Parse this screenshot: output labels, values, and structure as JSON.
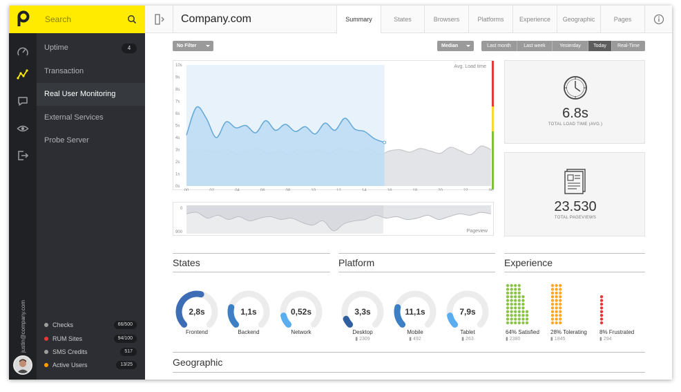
{
  "app": {
    "user_email": "justin@company.com"
  },
  "search": {
    "label": "Search"
  },
  "sidebar": {
    "items": [
      {
        "label": "Uptime",
        "badge": "4"
      },
      {
        "label": "Transaction"
      },
      {
        "label": "Real User Monitoring"
      },
      {
        "label": "External Services"
      },
      {
        "label": "Probe Server"
      }
    ],
    "stats": [
      {
        "label": "Checks",
        "value": "66/500",
        "color": "#9e9e9e"
      },
      {
        "label": "RUM Sites",
        "value": "94/100",
        "color": "#e53935"
      },
      {
        "label": "SMS Credits",
        "value": "517",
        "color": "#9e9e9e"
      },
      {
        "label": "Active Users",
        "value": "13/25",
        "color": "#ffa000"
      }
    ]
  },
  "header": {
    "title": "Company.com",
    "tabs": [
      "Summary",
      "States",
      "Browsers",
      "Platforms",
      "Experience",
      "Geographic",
      "Pages"
    ],
    "active_tab": "Summary"
  },
  "filters": {
    "filter_label": "No Filter",
    "metric_label": "Median",
    "ranges": [
      "Last month",
      "Last week",
      "Yesterday",
      "Today",
      "Real-Time"
    ],
    "active_range": "Today"
  },
  "chart_data": [
    {
      "type": "area",
      "title": "Avg. Load time",
      "x_ticks": [
        "00",
        "02",
        "04",
        "06",
        "08",
        "10",
        "12",
        "14",
        "16",
        "18",
        "20",
        "22",
        "00"
      ],
      "y_ticks": [
        "0s",
        "1s",
        "2s",
        "3s",
        "4s",
        "5s",
        "6s",
        "7s",
        "8s",
        "9s",
        "10s"
      ],
      "ylim": [
        0,
        10
      ],
      "series": [
        {
          "values": [
            4.2,
            6.5,
            5.6,
            4.0,
            5.3,
            4.8,
            5.0,
            4.4,
            5.4,
            4.6,
            5.1,
            4.5,
            4.9,
            4.3,
            5.2,
            4.6,
            5.6,
            4.7,
            4.5,
            3.9,
            3.6
          ],
          "x_end_hour": 15.6,
          "color": "#62a8d8"
        },
        {
          "values": [
            2.7,
            3.0,
            2.9,
            2.8,
            3.0,
            2.6,
            2.9,
            3.1,
            2.7,
            2.9,
            2.6,
            3.0,
            2.8,
            3.0,
            2.7,
            3.1,
            2.9,
            2.8,
            3.1,
            2.6,
            2.9,
            3.0,
            2.8,
            3.1,
            2.9,
            2.7,
            3.2,
            2.9,
            2.6,
            3.3,
            3.0
          ],
          "color": "#c8c8cc"
        }
      ],
      "threshold_colors": [
        "#e53935",
        "#fdd835",
        "#7cc242"
      ]
    },
    {
      "type": "area",
      "title": "Pageview",
      "y_ticks": [
        "0",
        "900"
      ],
      "values": [
        0.3,
        0.25,
        0.45,
        0.35,
        0.5,
        0.4,
        0.55,
        0.45,
        0.4,
        0.5,
        0.45,
        0.6,
        0.7,
        0.55,
        0.9,
        0.65,
        0.55,
        0.5,
        0.35,
        0.45,
        0.4,
        0.5,
        0.45,
        0.35,
        0.5,
        0.4,
        0.3,
        0.35,
        0.25,
        0.3
      ]
    }
  ],
  "kpis": [
    {
      "value": "6.8s",
      "label": "TOTAL LOAD TIME (AVG.)"
    },
    {
      "value": "23.530",
      "label": "TOTAL PAGEVIEWS"
    }
  ],
  "states": {
    "title": "States",
    "gauges": [
      {
        "value": "2,8s",
        "name": "Frontend",
        "fill": 0.55,
        "color": "#3d6db5"
      },
      {
        "value": "1,1s",
        "name": "Backend",
        "fill": 0.22,
        "color": "#3d7fc4"
      },
      {
        "value": "0,52s",
        "name": "Network",
        "fill": 0.12,
        "color": "#5aaef0"
      }
    ]
  },
  "platform": {
    "title": "Platform",
    "gauges": [
      {
        "value": "3,3s",
        "name": "Desktop",
        "sub": "2309",
        "fill": 0.08,
        "color": "#2f5f9e"
      },
      {
        "value": "11,1s",
        "name": "Mobile",
        "sub": "492",
        "fill": 0.22,
        "color": "#3d7fc4"
      },
      {
        "value": "7,9s",
        "name": "Tablet",
        "sub": "263",
        "fill": 0.12,
        "color": "#5aaef0"
      }
    ]
  },
  "experience": {
    "title": "Experience",
    "groups": [
      {
        "label": "64% Satisfied",
        "sub": "2380",
        "color": "#8bc34a",
        "fraction": 0.64
      },
      {
        "label": "28% Tolerating",
        "sub": "1845",
        "color": "#ffa726",
        "fraction": 0.28
      },
      {
        "label": "8% Frustrated",
        "sub": "294",
        "color": "#e53935",
        "fraction": 0.08
      }
    ]
  },
  "geographic": {
    "title": "Geographic"
  }
}
